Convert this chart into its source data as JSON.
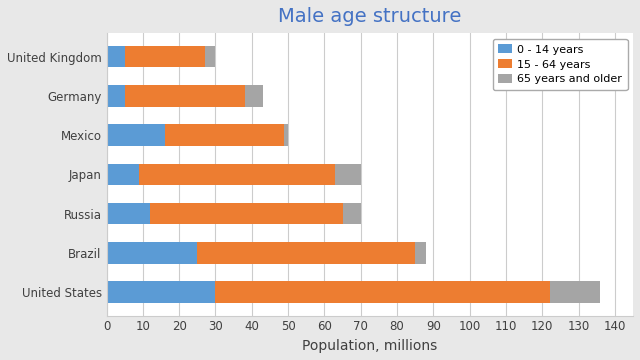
{
  "title": "Male age structure",
  "xlabel": "Population, millions",
  "countries": [
    "United States",
    "Brazil",
    "Russia",
    "Japan",
    "Mexico",
    "Germany",
    "United Kingdom"
  ],
  "age_0_14": [
    30,
    25,
    12,
    9,
    16,
    5,
    5
  ],
  "age_15_64": [
    92,
    60,
    53,
    54,
    33,
    33,
    22
  ],
  "age_65_plus": [
    14,
    3,
    5,
    7,
    1,
    5,
    3
  ],
  "color_0_14": "#5b9bd5",
  "color_15_64": "#ed7d31",
  "color_65_plus": "#a5a5a5",
  "legend_labels": [
    "0 - 14 years",
    "15 - 64 years",
    "65 years and older"
  ],
  "xlim": [
    0,
    145
  ],
  "xticks": [
    0,
    10,
    20,
    30,
    40,
    50,
    60,
    70,
    80,
    90,
    100,
    110,
    120,
    130,
    140
  ],
  "title_color": "#4472c4",
  "title_fontsize": 14,
  "xlabel_fontsize": 10,
  "bg_color": "#e8e8e8",
  "plot_bg_color": "#ffffff",
  "grid_color": "#cccccc",
  "tick_labelsize": 8.5,
  "bar_height": 0.55
}
